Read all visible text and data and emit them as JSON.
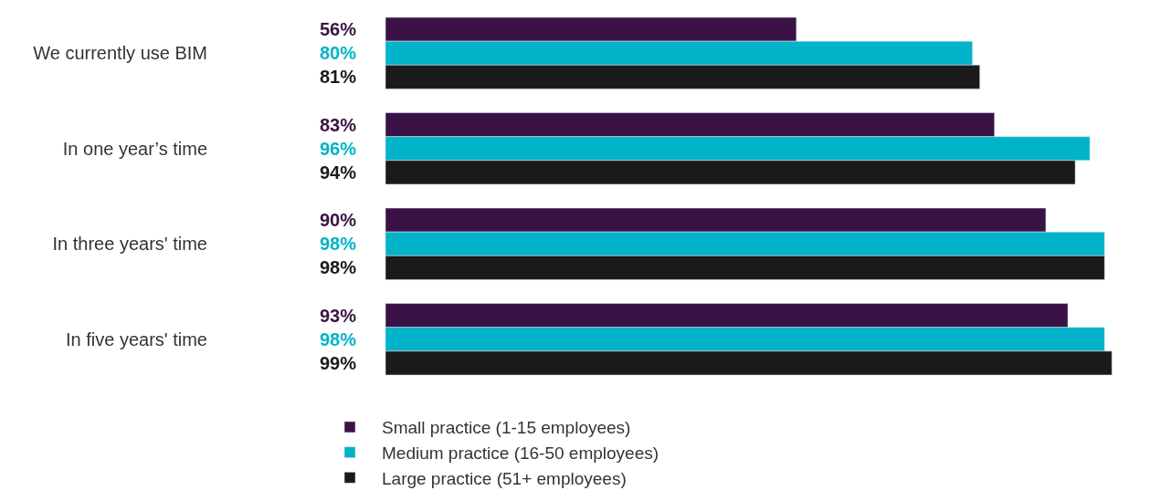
{
  "chart_data": {
    "type": "bar",
    "orientation": "horizontal",
    "categories": [
      "We currently use BIM",
      "In one year’s time",
      "In three years' time",
      "In five years' time"
    ],
    "series": [
      {
        "name": "Small practice (1-15 employees)",
        "color": "#3b1245",
        "values": [
          56,
          83,
          90,
          93
        ],
        "value_labels": [
          "56%",
          "83%",
          "90%",
          "93%"
        ]
      },
      {
        "name": "Medium practice (16-50 employees)",
        "color": "#00b3c8",
        "values": [
          80,
          96,
          98,
          98
        ],
        "value_labels": [
          "80%",
          "96%",
          "98%",
          "98%"
        ]
      },
      {
        "name": "Large practice (51+ employees)",
        "color": "#1a1a1a",
        "values": [
          81,
          94,
          98,
          99
        ],
        "value_labels": [
          "81%",
          "94%",
          "98%",
          "99%"
        ]
      }
    ],
    "tick_labels": "y",
    "legend": "bottom"
  }
}
